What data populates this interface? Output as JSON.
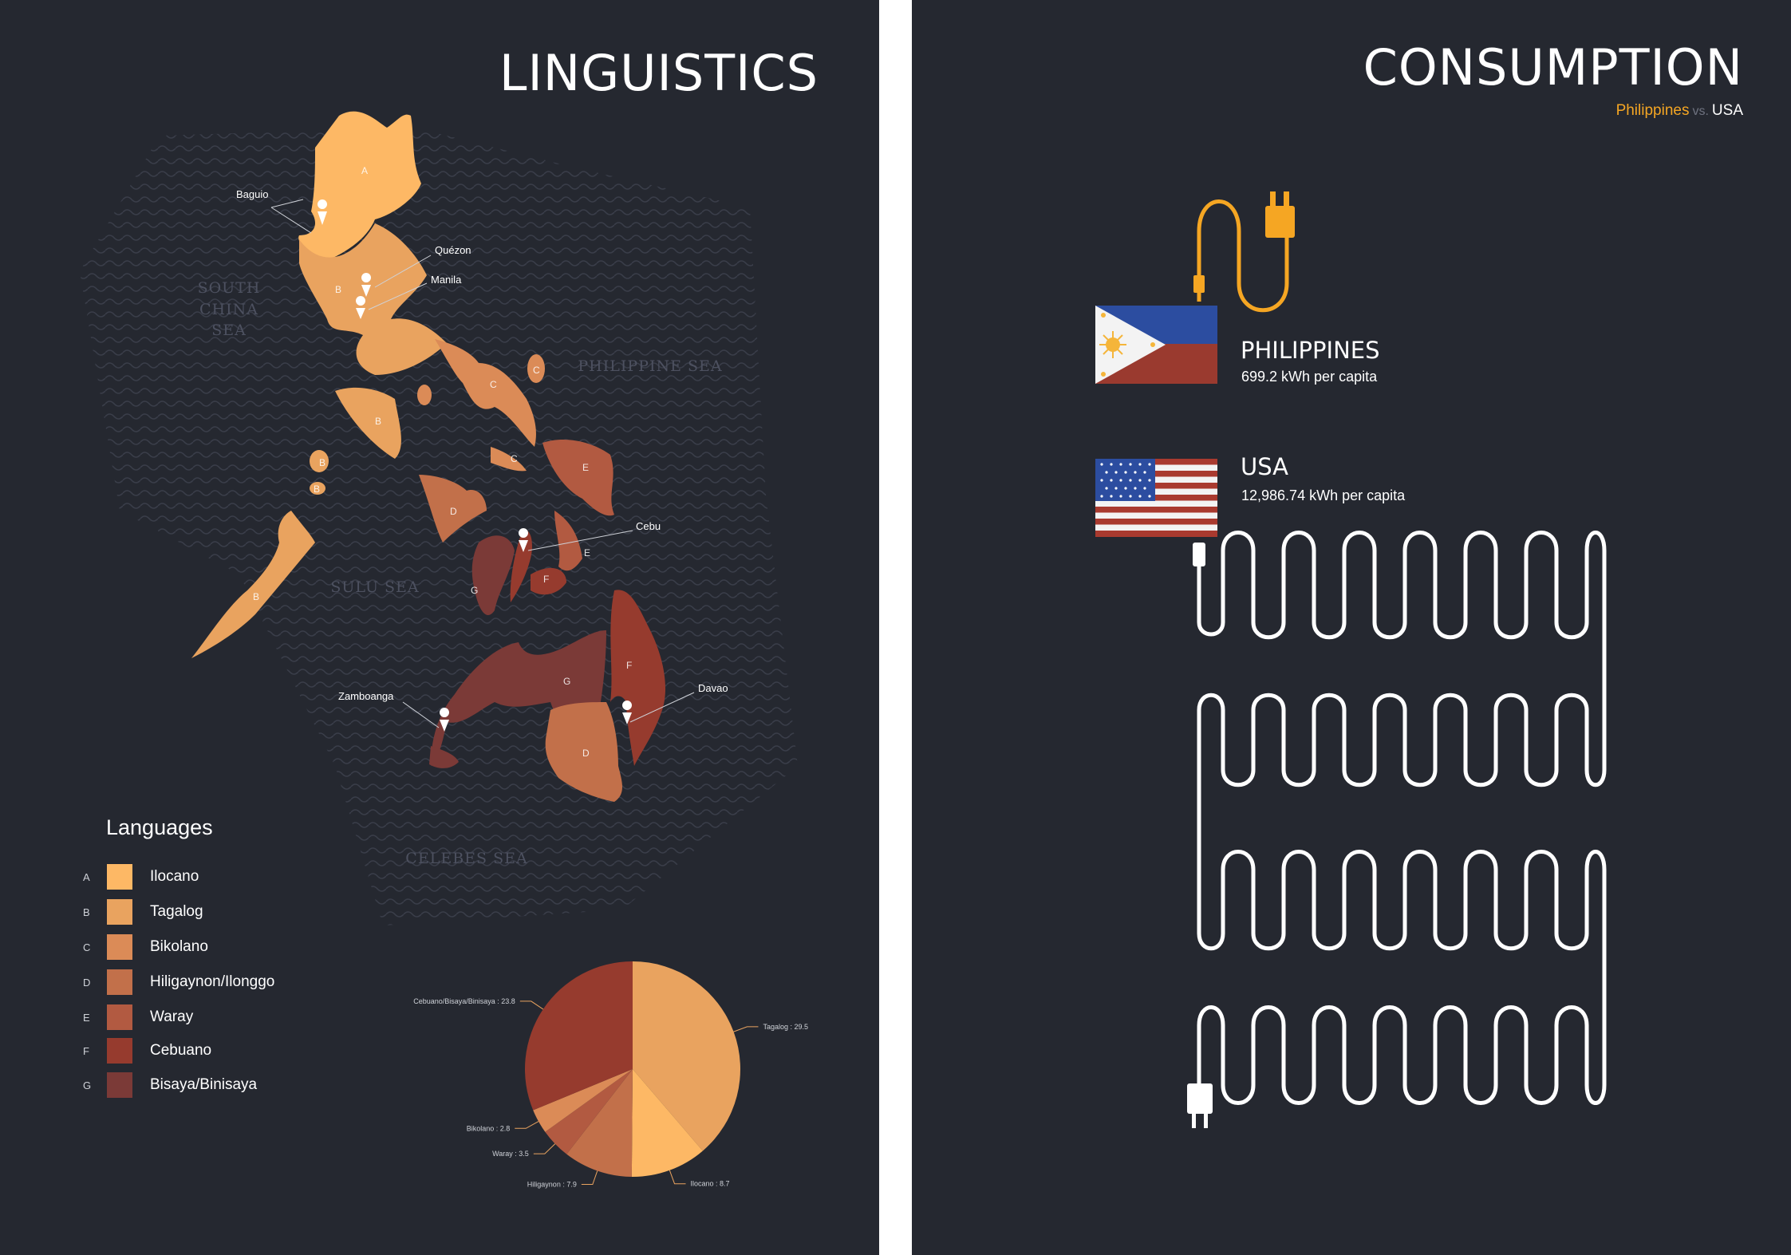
{
  "linguistics": {
    "title": "LINGUISTICS",
    "seas": {
      "south_china": [
        "SOUTH",
        "CHINA",
        "SEA"
      ],
      "philippine": "PHILIPPINE SEA",
      "sulu": "SULU SEA",
      "celebes": "CELEBES SEA"
    },
    "cities": [
      "Baguio",
      "Quézon",
      "Manila",
      "Cebu",
      "Zamboanga",
      "Davao"
    ],
    "regions": {
      "a": "A",
      "b": "B",
      "c": "C",
      "d": "D",
      "e": "E",
      "f": "F",
      "g": "G"
    },
    "legend": {
      "title": "Languages",
      "items": [
        {
          "letter": "A",
          "label": "Ilocano",
          "color": "#fdb865"
        },
        {
          "letter": "B",
          "label": "Tagalog",
          "color": "#e9a35f"
        },
        {
          "letter": "C",
          "label": "Bikolano",
          "color": "#db8b57"
        },
        {
          "letter": "D",
          "label": "Hiligaynon/Ilonggo",
          "color": "#c2704a"
        },
        {
          "letter": "E",
          "label": "Waray",
          "color": "#b25a41"
        },
        {
          "letter": "F",
          "label": "Cebuano",
          "color": "#963b2e"
        },
        {
          "letter": "G",
          "label": "Bisaya/Binisaya",
          "color": "#7b3a37"
        }
      ]
    }
  },
  "chart_data": {
    "type": "pie",
    "slices": [
      {
        "label": "Tagalog : 29.5",
        "value": 29.5,
        "color": "#e9a35f"
      },
      {
        "label": "Ilocano : 8.7",
        "value": 8.7,
        "color": "#fdb865"
      },
      {
        "label": "Hiligaynon : 7.9",
        "value": 7.9,
        "color": "#c2704a"
      },
      {
        "label": "Waray : 3.5",
        "value": 3.5,
        "color": "#b25a41"
      },
      {
        "label": "Bikolano : 2.8",
        "value": 2.8,
        "color": "#db8b57"
      },
      {
        "label": "Cebuano/Bisaya/Binisaya : 23.8",
        "value": 23.8,
        "color": "#963b2e"
      }
    ]
  },
  "consumption": {
    "title": "CONSUMPTION",
    "subtitle": {
      "a": "Philippines",
      "vs": "vs.",
      "b": "USA"
    },
    "philippines": {
      "name": "PHILIPPINES",
      "value": "699.2 kWh per capita"
    },
    "usa": {
      "name": "USA",
      "value": "12,986.74 kWh per capita"
    },
    "colors": {
      "philippines_cord": "#f5a623",
      "usa_cord": "#ffffff"
    }
  }
}
